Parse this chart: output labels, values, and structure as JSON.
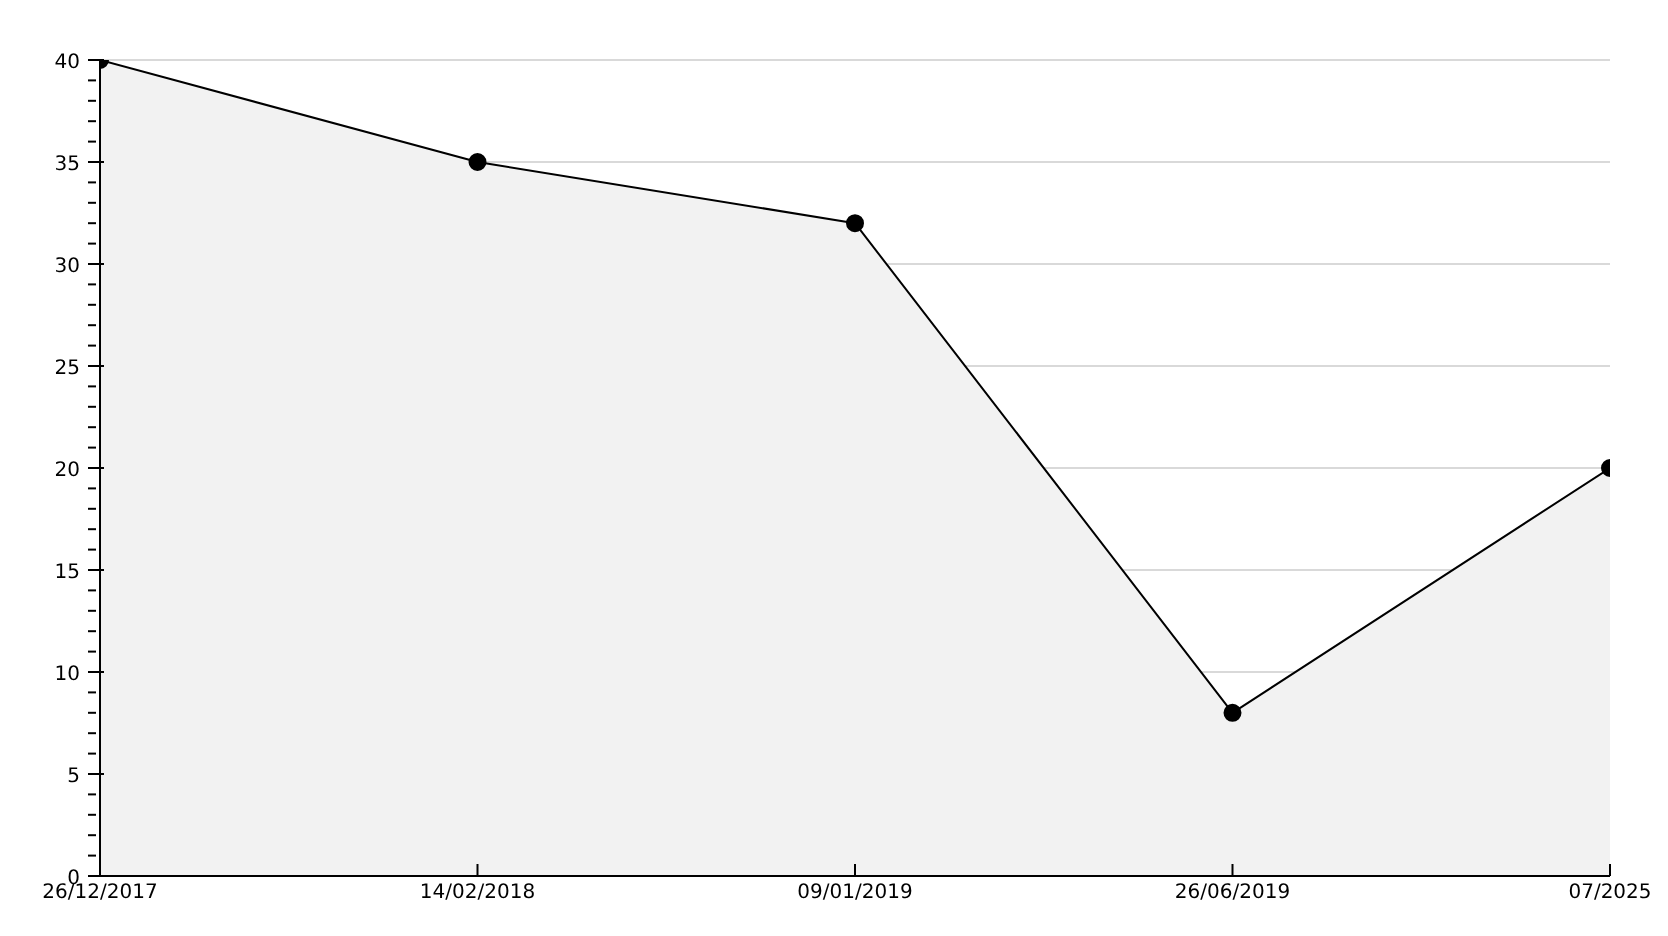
{
  "chart_data": {
    "type": "area",
    "categories": [
      "26/12/2017",
      "14/02/2018",
      "09/01/2019",
      "26/06/2019",
      "07/2025"
    ],
    "series": [
      {
        "color": "#000000",
        "values": [
          40,
          35,
          32,
          8,
          20
        ]
      }
    ],
    "ylim": [
      0,
      40
    ],
    "yticks": [
      0,
      {
        "value": 1,
        "label": null
      },
      {
        "value": 2,
        "label": null
      },
      {
        "value": 3,
        "label": null
      },
      {
        "value": 4,
        "label": null
      },
      5,
      {
        "value": 6,
        "label": null
      },
      {
        "value": 7,
        "label": null
      },
      {
        "value": 8,
        "label": null
      },
      {
        "value": 9,
        "label": null
      },
      10,
      {
        "value": 11,
        "label": null
      },
      {
        "value": 12,
        "label": null
      },
      {
        "value": 13,
        "label": null
      },
      {
        "value": 14,
        "label": null
      },
      15,
      {
        "value": 16,
        "label": null
      },
      {
        "value": 17,
        "label": null
      },
      {
        "value": 18,
        "label": null
      },
      {
        "value": 19,
        "label": null
      },
      20,
      {
        "value": 21,
        "label": null
      },
      {
        "value": 22,
        "label": null
      },
      {
        "value": 23,
        "label": null
      },
      {
        "value": 24,
        "label": null
      },
      25,
      {
        "value": 26,
        "label": null
      },
      {
        "value": 27,
        "label": null
      },
      {
        "value": 28,
        "label": null
      },
      {
        "value": 29,
        "label": null
      },
      30,
      {
        "value": 31,
        "label": null
      },
      {
        "value": 32,
        "label": null
      },
      {
        "value": 33,
        "label": null
      },
      {
        "value": 34,
        "label": null
      },
      35,
      {
        "value": 36,
        "label": null
      },
      {
        "value": 37,
        "label": null
      },
      {
        "value": 38,
        "label": null
      },
      {
        "value": 39,
        "label": null
      },
      40
    ],
    "grid": "y",
    "marker": "circle",
    "line_style": "solid"
  }
}
